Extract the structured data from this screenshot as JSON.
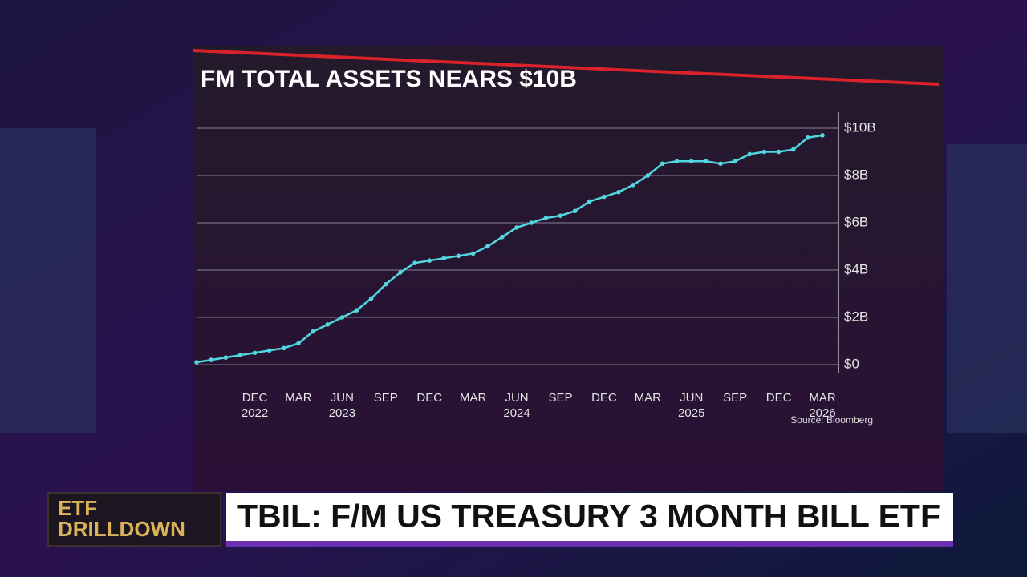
{
  "chart_data": {
    "type": "line",
    "title": "FM TOTAL ASSETS NEARS $10B",
    "source": "Source: Bloomberg",
    "categories": [
      null,
      null,
      null,
      null,
      "DEC",
      null,
      null,
      "MAR",
      null,
      null,
      "JUN",
      null,
      null,
      "SEP",
      null,
      null,
      "DEC",
      null,
      null,
      "MAR",
      null,
      null,
      "JUN",
      null,
      null,
      "SEP",
      null,
      null,
      "DEC",
      null,
      null,
      "MAR",
      null,
      null,
      "JUN",
      null,
      null,
      "SEP",
      null,
      null,
      "DEC",
      null,
      null,
      "MAR"
    ],
    "years": [
      null,
      null,
      null,
      null,
      "2022",
      null,
      null,
      null,
      null,
      null,
      "2023",
      null,
      null,
      null,
      null,
      null,
      null,
      null,
      null,
      null,
      null,
      null,
      "2024",
      null,
      null,
      null,
      null,
      null,
      null,
      null,
      null,
      null,
      null,
      null,
      "2025",
      null,
      null,
      null,
      null,
      null,
      null,
      null,
      null,
      "2026"
    ],
    "series": [
      {
        "color": "#52d6e0",
        "values": [
          0.1,
          0.2,
          0.3,
          0.4,
          0.5,
          0.6,
          0.7,
          0.9,
          1.4,
          1.7,
          2.0,
          2.3,
          2.8,
          3.4,
          3.9,
          4.3,
          4.4,
          4.5,
          4.6,
          4.7,
          5.0,
          5.4,
          5.8,
          6.0,
          6.2,
          6.3,
          6.5,
          6.9,
          7.1,
          7.3,
          7.6,
          8.0,
          8.5,
          8.6,
          8.6,
          8.6,
          8.5,
          8.6,
          8.9,
          9.0,
          9.0,
          9.1,
          9.6,
          9.7
        ]
      }
    ],
    "ylim": [
      0,
      10
    ],
    "yticks": [
      {
        "value": 0,
        "label": "$0"
      },
      {
        "value": 2,
        "label": "$2B"
      },
      {
        "value": 4,
        "label": "$4B"
      },
      {
        "value": 6,
        "label": "$6B"
      },
      {
        "value": 8,
        "label": "$8B"
      },
      {
        "value": 10,
        "label": "$10B"
      }
    ],
    "grid": true
  },
  "lower_third": {
    "show_line1": "ETF",
    "show_line2": "DRILLDOWN",
    "headline": "TBIL: F/M US TREASURY 3 MONTH BILL ETF"
  }
}
